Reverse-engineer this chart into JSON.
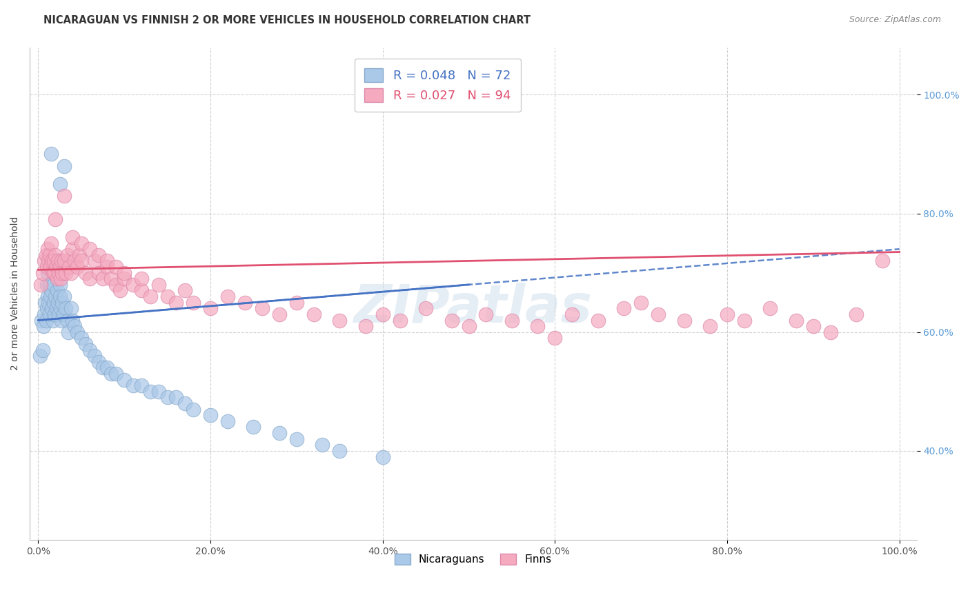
{
  "title": "NICARAGUAN VS FINNISH 2 OR MORE VEHICLES IN HOUSEHOLD CORRELATION CHART",
  "source": "Source: ZipAtlas.com",
  "ylabel": "2 or more Vehicles in Household",
  "watermark": "ZIPatlas",
  "legend_r1": "R = 0.048",
  "legend_n1": "N = 72",
  "legend_r2": "R = 0.027",
  "legend_n2": "N = 94",
  "blue_fill": "#aac8e8",
  "blue_edge": "#88aacc",
  "pink_fill": "#f5aabf",
  "pink_edge": "#dd88aa",
  "line_blue": "#4472c4",
  "line_pink": "#e05070",
  "background": "#ffffff",
  "grid_color": "#cccccc",
  "watermark_color": "#ccdcec",
  "nic_x": [
    0.2,
    0.4,
    0.5,
    0.6,
    0.7,
    0.8,
    0.9,
    1.0,
    1.0,
    1.1,
    1.1,
    1.2,
    1.3,
    1.3,
    1.4,
    1.5,
    1.5,
    1.6,
    1.7,
    1.8,
    1.8,
    1.9,
    2.0,
    2.0,
    2.1,
    2.2,
    2.2,
    2.3,
    2.4,
    2.5,
    2.5,
    2.6,
    2.7,
    2.8,
    2.9,
    3.0,
    3.2,
    3.4,
    3.5,
    3.8,
    4.0,
    4.2,
    4.5,
    5.0,
    5.5,
    6.0,
    6.5,
    7.0,
    7.5,
    8.0,
    8.5,
    9.0,
    10.0,
    11.0,
    12.0,
    13.0,
    14.0,
    15.0,
    16.0,
    17.0,
    18.0,
    20.0,
    22.0,
    25.0,
    28.0,
    30.0,
    33.0,
    35.0,
    40.0,
    1.5,
    2.5,
    3.0
  ],
  "nic_y": [
    56.0,
    62.0,
    57.0,
    61.0,
    63.0,
    65.0,
    62.0,
    64.0,
    68.0,
    66.0,
    70.0,
    65.0,
    63.0,
    68.0,
    66.0,
    72.0,
    67.0,
    64.0,
    62.0,
    65.0,
    68.0,
    63.0,
    66.0,
    70.0,
    64.0,
    67.0,
    72.0,
    65.0,
    63.0,
    68.0,
    66.0,
    64.0,
    62.0,
    65.0,
    63.0,
    66.0,
    64.0,
    62.0,
    60.0,
    64.0,
    62.0,
    61.0,
    60.0,
    59.0,
    58.0,
    57.0,
    56.0,
    55.0,
    54.0,
    54.0,
    53.0,
    53.0,
    52.0,
    51.0,
    51.0,
    50.0,
    50.0,
    49.0,
    49.0,
    48.0,
    47.0,
    46.0,
    45.0,
    44.0,
    43.0,
    42.0,
    41.0,
    40.0,
    39.0,
    90.0,
    85.0,
    88.0
  ],
  "finn_x": [
    0.3,
    0.5,
    0.7,
    0.9,
    1.0,
    1.1,
    1.2,
    1.3,
    1.4,
    1.5,
    1.6,
    1.7,
    1.8,
    1.9,
    2.0,
    2.1,
    2.2,
    2.3,
    2.4,
    2.5,
    2.6,
    2.7,
    2.8,
    3.0,
    3.2,
    3.4,
    3.6,
    3.8,
    4.0,
    4.2,
    4.5,
    4.8,
    5.0,
    5.5,
    6.0,
    6.5,
    7.0,
    7.5,
    8.0,
    8.5,
    9.0,
    9.5,
    10.0,
    11.0,
    12.0,
    13.0,
    14.0,
    15.0,
    16.0,
    17.0,
    18.0,
    20.0,
    22.0,
    24.0,
    26.0,
    28.0,
    30.0,
    32.0,
    35.0,
    38.0,
    40.0,
    42.0,
    45.0,
    48.0,
    50.0,
    52.0,
    55.0,
    58.0,
    60.0,
    62.0,
    65.0,
    68.0,
    70.0,
    72.0,
    75.0,
    78.0,
    80.0,
    82.0,
    85.0,
    88.0,
    90.0,
    92.0,
    95.0,
    98.0,
    2.0,
    3.0,
    4.0,
    5.0,
    6.0,
    7.0,
    8.0,
    9.0,
    10.0,
    12.0
  ],
  "finn_y": [
    68.0,
    70.0,
    72.0,
    73.0,
    71.0,
    74.0,
    72.0,
    73.0,
    71.0,
    75.0,
    72.0,
    70.0,
    72.0,
    70.0,
    73.0,
    71.0,
    69.0,
    72.0,
    70.0,
    71.0,
    69.0,
    72.0,
    70.0,
    72.0,
    70.0,
    73.0,
    71.0,
    70.0,
    74.0,
    72.0,
    71.0,
    73.0,
    72.0,
    70.0,
    69.0,
    72.0,
    70.0,
    69.0,
    71.0,
    69.0,
    68.0,
    67.0,
    69.0,
    68.0,
    67.0,
    66.0,
    68.0,
    66.0,
    65.0,
    67.0,
    65.0,
    64.0,
    66.0,
    65.0,
    64.0,
    63.0,
    65.0,
    63.0,
    62.0,
    61.0,
    63.0,
    62.0,
    64.0,
    62.0,
    61.0,
    63.0,
    62.0,
    61.0,
    59.0,
    63.0,
    62.0,
    64.0,
    65.0,
    63.0,
    62.0,
    61.0,
    63.0,
    62.0,
    64.0,
    62.0,
    61.0,
    60.0,
    63.0,
    72.0,
    79.0,
    83.0,
    76.0,
    75.0,
    74.0,
    73.0,
    72.0,
    71.0,
    70.0,
    69.0
  ],
  "xlim": [
    -1,
    102
  ],
  "ylim": [
    25,
    108
  ],
  "xticks": [
    0,
    20,
    40,
    60,
    80,
    100
  ],
  "yticks": [
    40,
    60,
    80,
    100
  ],
  "xticklabels": [
    "0.0%",
    "20.0%",
    "40.0%",
    "60.0%",
    "80.0%",
    "100.0%"
  ],
  "yticklabels": [
    "40.0%",
    "60.0%",
    "80.0%",
    "100.0%"
  ],
  "blue_line_y0": 62.0,
  "blue_line_y100": 74.0,
  "pink_line_y0": 70.5,
  "pink_line_y100": 73.5
}
